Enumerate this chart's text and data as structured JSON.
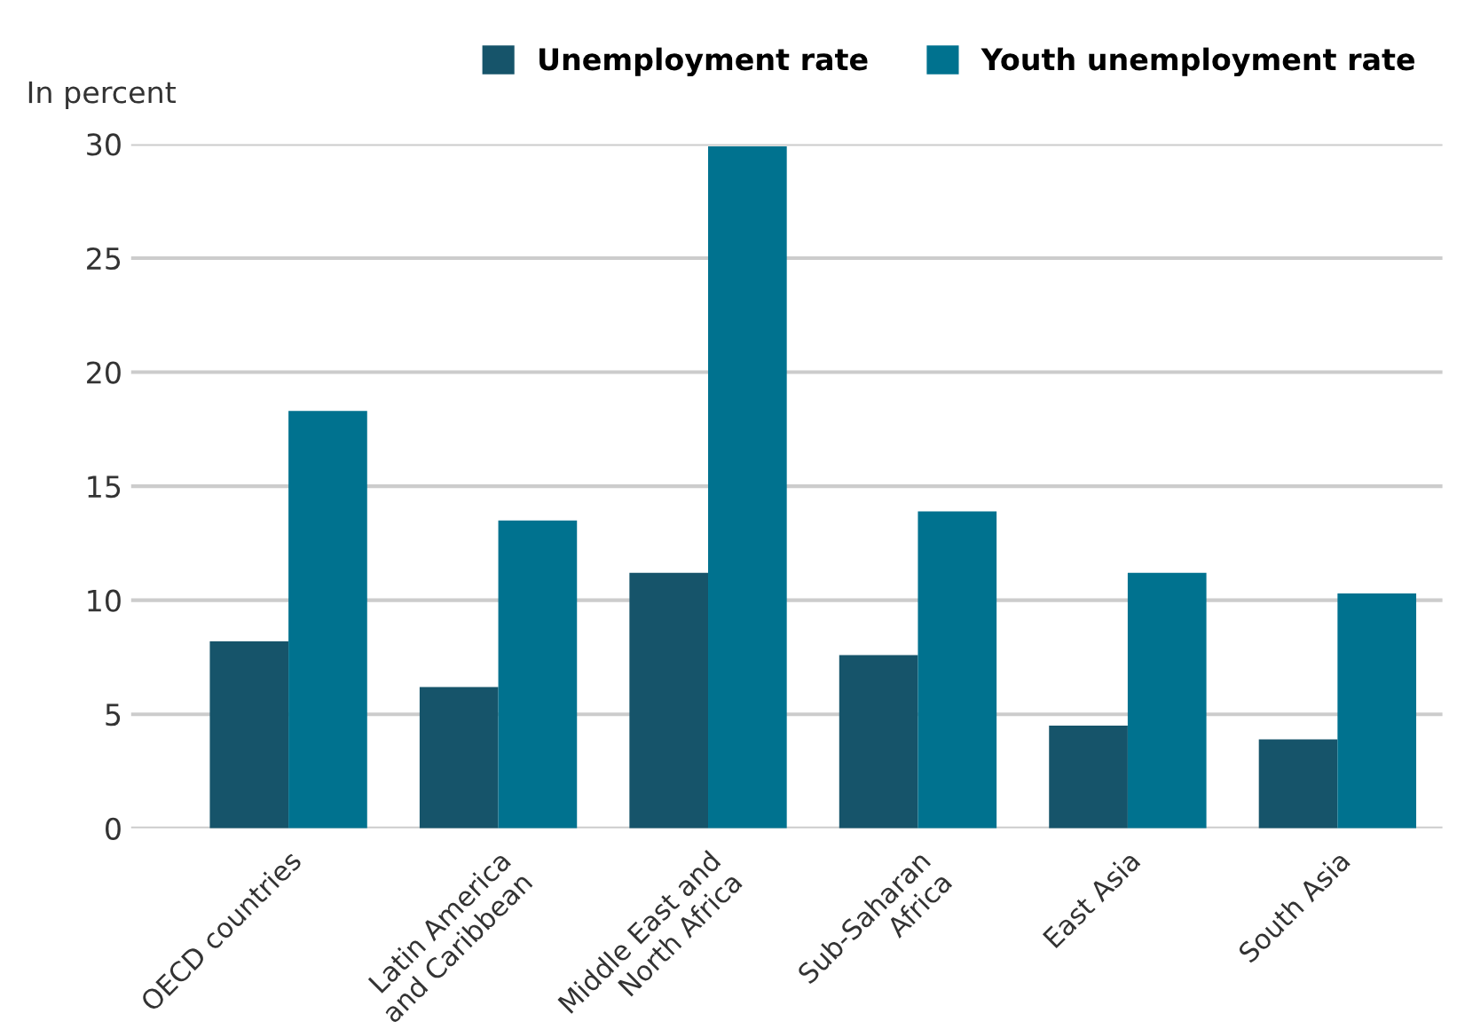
{
  "chart_data": {
    "type": "bar",
    "ylabel": "In percent",
    "categories": [
      "OECD countries",
      "Latin America\nand Caribbean",
      "Middle East and\nNorth Africa",
      "Sub-Saharan\nAfrica",
      "East Asia",
      "South Asia"
    ],
    "series": [
      {
        "name": "Unemployment rate",
        "color": "#16546a",
        "values": [
          8.2,
          6.2,
          11.2,
          7.6,
          4.5,
          3.9
        ]
      },
      {
        "name": "Youth unemployment rate",
        "color": "#00728f",
        "values": [
          18.3,
          13.5,
          29.9,
          13.9,
          11.2,
          10.3
        ]
      }
    ],
    "ylim": [
      0,
      30
    ],
    "yticks": [
      0,
      5,
      10,
      15,
      20,
      25,
      30
    ],
    "grid": "y",
    "legend": "top right"
  }
}
